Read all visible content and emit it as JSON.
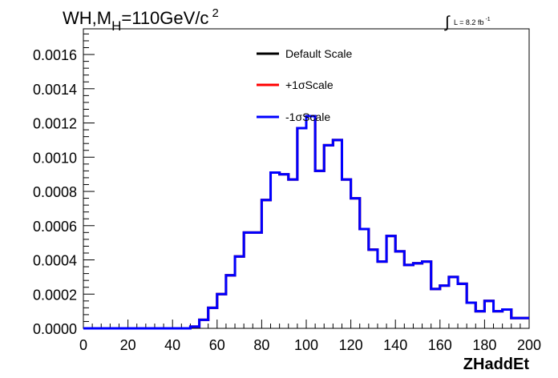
{
  "chart_data": {
    "type": "step",
    "title": {
      "pre": "WH,M",
      "sub": "H",
      "mid": "=110GeV/c",
      "sup": "2"
    },
    "lumi": {
      "symbol": "∫",
      "text": "L = 8.2 fb",
      "sup": "-1"
    },
    "xlabel": "ZHaddEt",
    "ylabel": "",
    "xlim": [
      0,
      200
    ],
    "ylim": [
      0,
      0.00175
    ],
    "x_ticks": [
      "0",
      "20",
      "40",
      "60",
      "80",
      "100",
      "120",
      "140",
      "160",
      "180",
      "200"
    ],
    "y_ticks": [
      "0.0000",
      "0.0002",
      "0.0004",
      "0.0006",
      "0.0008",
      "0.0010",
      "0.0012",
      "0.0014",
      "0.0016"
    ],
    "bin_width": 4,
    "x_start": 0,
    "values": [
      0,
      0,
      0,
      0,
      0,
      0,
      0,
      0,
      0,
      0,
      0,
      0,
      1e-05,
      5e-05,
      0.00012,
      0.0002,
      0.00031,
      0.00042,
      0.00056,
      0.00056,
      0.00075,
      0.00091,
      0.0009,
      0.00087,
      0.00117,
      0.00124,
      0.00092,
      0.00107,
      0.0011,
      0.00087,
      0.00076,
      0.00058,
      0.00046,
      0.00039,
      0.00054,
      0.00045,
      0.00037,
      0.00038,
      0.00039,
      0.00023,
      0.00025,
      0.0003,
      0.00026,
      0.00015,
      0.0001,
      0.00016,
      0.0001,
      0.00011,
      6e-05,
      6e-05
    ],
    "series": [
      {
        "name": "Default Scale",
        "color": "#000000"
      },
      {
        "name": "+1σScale",
        "color": "#ff0000"
      },
      {
        "name": "-1σScale",
        "color": "#0000ff"
      }
    ],
    "legend_position": "top-center",
    "grid": false
  }
}
